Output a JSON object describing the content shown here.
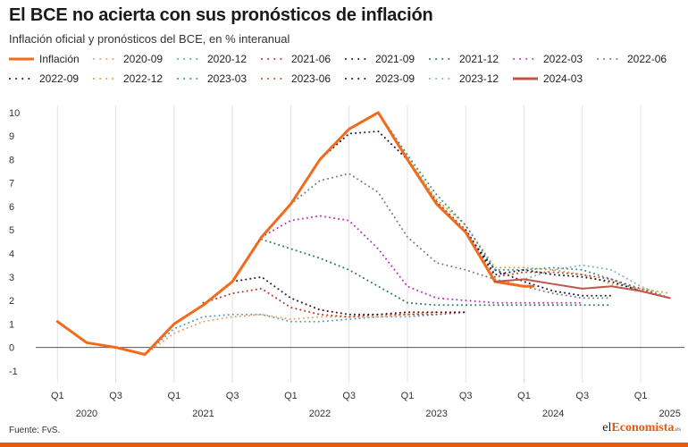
{
  "header": {
    "title": "El BCE no acierta con sus pronósticos de inflación",
    "subtitle": "Inflación oficial y pronósticos del BCE, en % interanual"
  },
  "footer": {
    "source": "Fuente: FvS.",
    "brand_part1": "el",
    "brand_part2": "Economista",
    "brand_part3": ".es"
  },
  "chart_data": {
    "type": "line",
    "title": "El BCE no acierta con sus pronósticos de inflación",
    "subtitle": "Inflación oficial y pronósticos del BCE, en % interanual",
    "xlabel": "",
    "ylabel": "",
    "x_range": [
      2019.875,
      2025.375
    ],
    "ylim": [
      -1.5,
      10.3
    ],
    "y_ticks": [
      -1,
      0,
      1,
      2,
      3,
      4,
      5,
      6,
      7,
      8,
      9,
      10
    ],
    "x_ticks": [
      {
        "x": 2020.0,
        "label": "Q1",
        "year": "2020"
      },
      {
        "x": 2020.5,
        "label": "Q3",
        "year": ""
      },
      {
        "x": 2021.0,
        "label": "Q1",
        "year": "2021"
      },
      {
        "x": 2021.5,
        "label": "Q3",
        "year": ""
      },
      {
        "x": 2022.0,
        "label": "Q1",
        "year": "2022"
      },
      {
        "x": 2022.5,
        "label": "Q3",
        "year": ""
      },
      {
        "x": 2023.0,
        "label": "Q1",
        "year": "2023"
      },
      {
        "x": 2023.5,
        "label": "Q3",
        "year": ""
      },
      {
        "x": 2024.0,
        "label": "Q1",
        "year": "2024"
      },
      {
        "x": 2024.5,
        "label": "Q3",
        "year": ""
      },
      {
        "x": 2025.0,
        "label": "Q1",
        "year": "2025"
      },
      {
        "x": 2025.5,
        "label": "Q3",
        "year": ""
      }
    ],
    "year_labels": [
      {
        "x": 2020.25,
        "label": "2020"
      },
      {
        "x": 2021.25,
        "label": "2021"
      },
      {
        "x": 2022.25,
        "label": "2022"
      },
      {
        "x": 2023.25,
        "label": "2023"
      },
      {
        "x": 2024.25,
        "label": "2024"
      },
      {
        "x": 2025.25,
        "label": "2025"
      }
    ],
    "grid": "vertical",
    "legend_position": "top",
    "series": [
      {
        "name": "Inflación",
        "color": "#f26b1d",
        "style": "solid",
        "width": 3,
        "points": [
          [
            2020.0,
            1.1
          ],
          [
            2020.25,
            0.2
          ],
          [
            2020.5,
            0.0
          ],
          [
            2020.75,
            -0.3
          ],
          [
            2021.0,
            1.0
          ],
          [
            2021.25,
            1.8
          ],
          [
            2021.5,
            2.8
          ],
          [
            2021.75,
            4.7
          ],
          [
            2022.0,
            6.1
          ],
          [
            2022.25,
            8.0
          ],
          [
            2022.5,
            9.3
          ],
          [
            2022.75,
            10.0
          ],
          [
            2023.0,
            8.0
          ],
          [
            2023.25,
            6.1
          ],
          [
            2023.5,
            4.9
          ],
          [
            2023.75,
            2.8
          ],
          [
            2024.0,
            2.6
          ],
          [
            2024.08,
            2.6
          ]
        ]
      },
      {
        "name": "2020-09",
        "color": "#f0a35e",
        "style": "dotted",
        "width": 2,
        "points": [
          [
            2020.75,
            -0.3
          ],
          [
            2021.0,
            0.6
          ],
          [
            2021.25,
            1.1
          ],
          [
            2021.5,
            1.3
          ],
          [
            2021.75,
            1.4
          ],
          [
            2022.0,
            1.2
          ],
          [
            2022.25,
            1.3
          ],
          [
            2022.5,
            1.3
          ],
          [
            2022.75,
            1.3
          ],
          [
            2023.0,
            1.4
          ],
          [
            2023.25,
            1.5
          ]
        ]
      },
      {
        "name": "2020-12",
        "color": "#5aa1c8",
        "style": "dotted",
        "width": 2,
        "points": [
          [
            2020.75,
            -0.3
          ],
          [
            2021.0,
            0.8
          ],
          [
            2021.25,
            1.3
          ],
          [
            2021.5,
            1.4
          ],
          [
            2021.75,
            1.4
          ],
          [
            2022.0,
            1.1
          ],
          [
            2022.25,
            1.1
          ],
          [
            2022.5,
            1.2
          ],
          [
            2022.75,
            1.3
          ],
          [
            2023.0,
            1.3
          ],
          [
            2023.25,
            1.4
          ]
        ]
      },
      {
        "name": "2021-06",
        "color": "#c0392b",
        "style": "dotted",
        "width": 2,
        "points": [
          [
            2021.25,
            1.9
          ],
          [
            2021.5,
            2.3
          ],
          [
            2021.75,
            2.5
          ],
          [
            2022.0,
            1.7
          ],
          [
            2022.25,
            1.4
          ],
          [
            2022.5,
            1.3
          ],
          [
            2022.75,
            1.4
          ],
          [
            2023.0,
            1.4
          ],
          [
            2023.25,
            1.4
          ],
          [
            2023.5,
            1.5
          ]
        ]
      },
      {
        "name": "2021-09",
        "color": "#4a1020",
        "style": "dotted",
        "width": 2,
        "points": [
          [
            2021.5,
            2.8
          ],
          [
            2021.75,
            3.0
          ],
          [
            2022.0,
            2.1
          ],
          [
            2022.25,
            1.6
          ],
          [
            2022.5,
            1.4
          ],
          [
            2022.75,
            1.4
          ],
          [
            2023.0,
            1.5
          ],
          [
            2023.25,
            1.5
          ],
          [
            2023.5,
            1.5
          ]
        ]
      },
      {
        "name": "2021-12",
        "color": "#2f7d5c",
        "style": "dotted",
        "width": 2,
        "points": [
          [
            2021.75,
            4.6
          ],
          [
            2022.0,
            4.2
          ],
          [
            2022.25,
            3.8
          ],
          [
            2022.5,
            3.3
          ],
          [
            2022.75,
            2.6
          ],
          [
            2023.0,
            1.9
          ],
          [
            2023.25,
            1.8
          ],
          [
            2023.5,
            1.8
          ],
          [
            2023.75,
            1.8
          ],
          [
            2024.0,
            1.8
          ],
          [
            2024.25,
            1.8
          ],
          [
            2024.5,
            1.8
          ],
          [
            2024.75,
            1.8
          ]
        ]
      },
      {
        "name": "2022-03",
        "color": "#c035c0",
        "style": "dotted",
        "width": 2,
        "points": [
          [
            2021.75,
            4.7
          ],
          [
            2022.0,
            5.4
          ],
          [
            2022.25,
            5.6
          ],
          [
            2022.5,
            5.4
          ],
          [
            2022.75,
            4.2
          ],
          [
            2023.0,
            2.6
          ],
          [
            2023.25,
            2.1
          ],
          [
            2023.5,
            2.0
          ],
          [
            2023.75,
            1.9
          ],
          [
            2024.0,
            1.9
          ],
          [
            2024.25,
            1.9
          ],
          [
            2024.5,
            1.9
          ]
        ]
      },
      {
        "name": "2022-06",
        "color": "#808080",
        "style": "dotted",
        "width": 2,
        "points": [
          [
            2022.0,
            6.1
          ],
          [
            2022.25,
            7.1
          ],
          [
            2022.5,
            7.4
          ],
          [
            2022.75,
            6.6
          ],
          [
            2023.0,
            4.7
          ],
          [
            2023.25,
            3.6
          ],
          [
            2023.5,
            3.3
          ],
          [
            2023.75,
            2.9
          ],
          [
            2024.0,
            2.6
          ],
          [
            2024.25,
            2.3
          ],
          [
            2024.5,
            2.1
          ],
          [
            2024.75,
            2.1
          ]
        ]
      },
      {
        "name": "2022-09",
        "color": "#1a1d4a",
        "style": "dotted",
        "width": 2,
        "points": [
          [
            2022.25,
            8.0
          ],
          [
            2022.5,
            9.1
          ],
          [
            2022.75,
            9.2
          ],
          [
            2023.0,
            8.0
          ],
          [
            2023.25,
            6.2
          ],
          [
            2023.5,
            4.9
          ],
          [
            2023.75,
            3.3
          ],
          [
            2024.0,
            2.8
          ],
          [
            2024.25,
            2.4
          ],
          [
            2024.5,
            2.2
          ],
          [
            2024.75,
            2.2
          ]
        ]
      },
      {
        "name": "2022-12",
        "color": "#e0a030",
        "style": "dotted",
        "width": 2,
        "points": [
          [
            2022.75,
            10.0
          ],
          [
            2023.0,
            8.1
          ],
          [
            2023.25,
            6.3
          ],
          [
            2023.5,
            5.2
          ],
          [
            2023.75,
            3.4
          ],
          [
            2024.0,
            3.4
          ],
          [
            2024.25,
            3.3
          ],
          [
            2024.5,
            3.1
          ],
          [
            2024.75,
            2.7
          ],
          [
            2025.0,
            2.5
          ],
          [
            2025.25,
            2.3
          ]
        ]
      },
      {
        "name": "2023-03",
        "color": "#3e8f9c",
        "style": "dotted",
        "width": 2,
        "points": [
          [
            2022.75,
            10.0
          ],
          [
            2023.0,
            8.2
          ],
          [
            2023.25,
            6.5
          ],
          [
            2023.5,
            5.2
          ],
          [
            2023.75,
            3.3
          ],
          [
            2024.0,
            3.3
          ],
          [
            2024.25,
            3.4
          ],
          [
            2024.5,
            3.3
          ],
          [
            2024.75,
            2.9
          ],
          [
            2025.0,
            2.4
          ],
          [
            2025.25,
            2.1
          ]
        ]
      },
      {
        "name": "2023-06",
        "color": "#b04a3a",
        "style": "dotted",
        "width": 2,
        "points": [
          [
            2023.25,
            6.2
          ],
          [
            2023.5,
            5.0
          ],
          [
            2023.75,
            3.0
          ],
          [
            2024.0,
            3.2
          ],
          [
            2024.25,
            3.2
          ],
          [
            2024.5,
            3.1
          ],
          [
            2024.75,
            2.9
          ],
          [
            2025.0,
            2.5
          ],
          [
            2025.25,
            2.1
          ]
        ]
      },
      {
        "name": "2023-09",
        "color": "#1c1c3c",
        "style": "dotted",
        "width": 2,
        "points": [
          [
            2023.5,
            5.0
          ],
          [
            2023.75,
            3.1
          ],
          [
            2024.0,
            3.3
          ],
          [
            2024.25,
            3.1
          ],
          [
            2024.5,
            3.0
          ],
          [
            2024.75,
            2.8
          ],
          [
            2025.0,
            2.4
          ],
          [
            2025.25,
            2.1
          ]
        ]
      },
      {
        "name": "2023-12",
        "color": "#7fb8a8",
        "style": "dotted",
        "width": 2,
        "points": [
          [
            2023.75,
            2.8
          ],
          [
            2024.0,
            2.9
          ],
          [
            2024.25,
            3.3
          ],
          [
            2024.5,
            3.5
          ],
          [
            2024.75,
            3.3
          ],
          [
            2025.0,
            2.6
          ],
          [
            2025.25,
            2.1
          ]
        ]
      },
      {
        "name": "2024-03",
        "color": "#c0554a",
        "style": "solid",
        "width": 2,
        "points": [
          [
            2023.75,
            2.8
          ],
          [
            2024.0,
            2.9
          ],
          [
            2024.25,
            2.7
          ],
          [
            2024.5,
            2.5
          ],
          [
            2024.75,
            2.6
          ],
          [
            2025.0,
            2.4
          ],
          [
            2025.25,
            2.1
          ]
        ]
      }
    ]
  }
}
